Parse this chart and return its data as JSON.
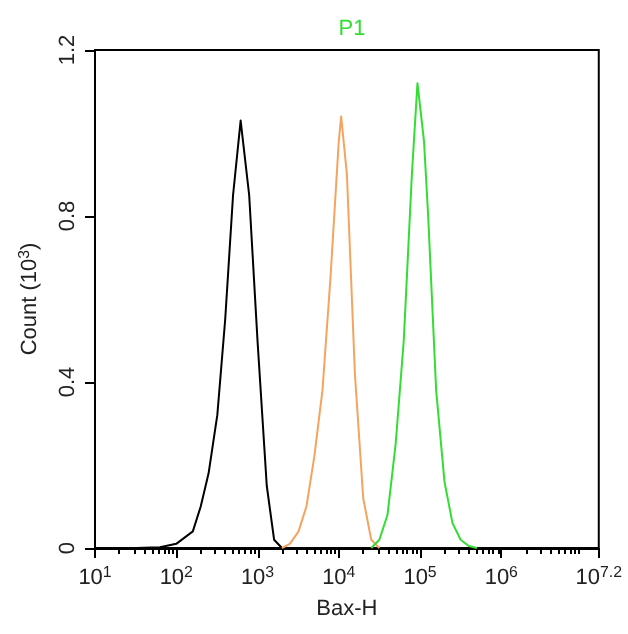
{
  "chart_data": {
    "type": "line",
    "xlabel": "Bax-H",
    "ylabel": "Count (10$^{3}$)",
    "log": "x",
    "grid": false,
    "marker": "none",
    "xlim": [
      10,
      15848932
    ],
    "xticks": [
      {
        "value": 10,
        "label": "10$^{1}$"
      },
      {
        "value": 100,
        "label": "10$^{2}$"
      },
      {
        "value": 1000,
        "label": "10$^{3}$"
      },
      {
        "value": 10000,
        "label": "10$^{4}$"
      },
      {
        "value": 100000,
        "label": "10$^{5}$"
      },
      {
        "value": 1000000,
        "label": "10$^{6}$"
      },
      {
        "value": 15848932,
        "label": "10$^{7.2}$"
      }
    ],
    "ylim": [
      0,
      1.2
    ],
    "yticks": [
      0,
      0.4,
      0.8,
      1.2
    ],
    "series": [
      {
        "color": "#000000",
        "x": [
          32,
          63,
          100,
          160,
          200,
          250,
          320,
          400,
          500,
          620,
          790,
          1000,
          1300,
          1600,
          2000
        ],
        "values": [
          0,
          0.002,
          0.01,
          0.04,
          0.1,
          0.18,
          0.32,
          0.55,
          0.85,
          1.03,
          0.85,
          0.5,
          0.15,
          0.02,
          0
        ]
      },
      {
        "color": "#f4a460",
        "x": [
          2000,
          2500,
          3200,
          4000,
          5000,
          6300,
          7900,
          10000,
          10700,
          12600,
          15800,
          20000,
          25100,
          31600
        ],
        "values": [
          0,
          0.01,
          0.04,
          0.1,
          0.22,
          0.38,
          0.65,
          0.98,
          1.04,
          0.9,
          0.42,
          0.12,
          0.02,
          0
        ]
      },
      {
        "name": "P1",
        "color": "#33dd33",
        "x": [
          25100,
          31600,
          39800,
          50100,
          63100,
          79400,
          93000,
          112000,
          126000,
          158000,
          200000,
          251000,
          316000,
          398000,
          501000
        ],
        "values": [
          0,
          0.02,
          0.08,
          0.25,
          0.5,
          0.9,
          1.12,
          0.98,
          0.8,
          0.38,
          0.16,
          0.06,
          0.02,
          0.005,
          0
        ]
      }
    ]
  }
}
